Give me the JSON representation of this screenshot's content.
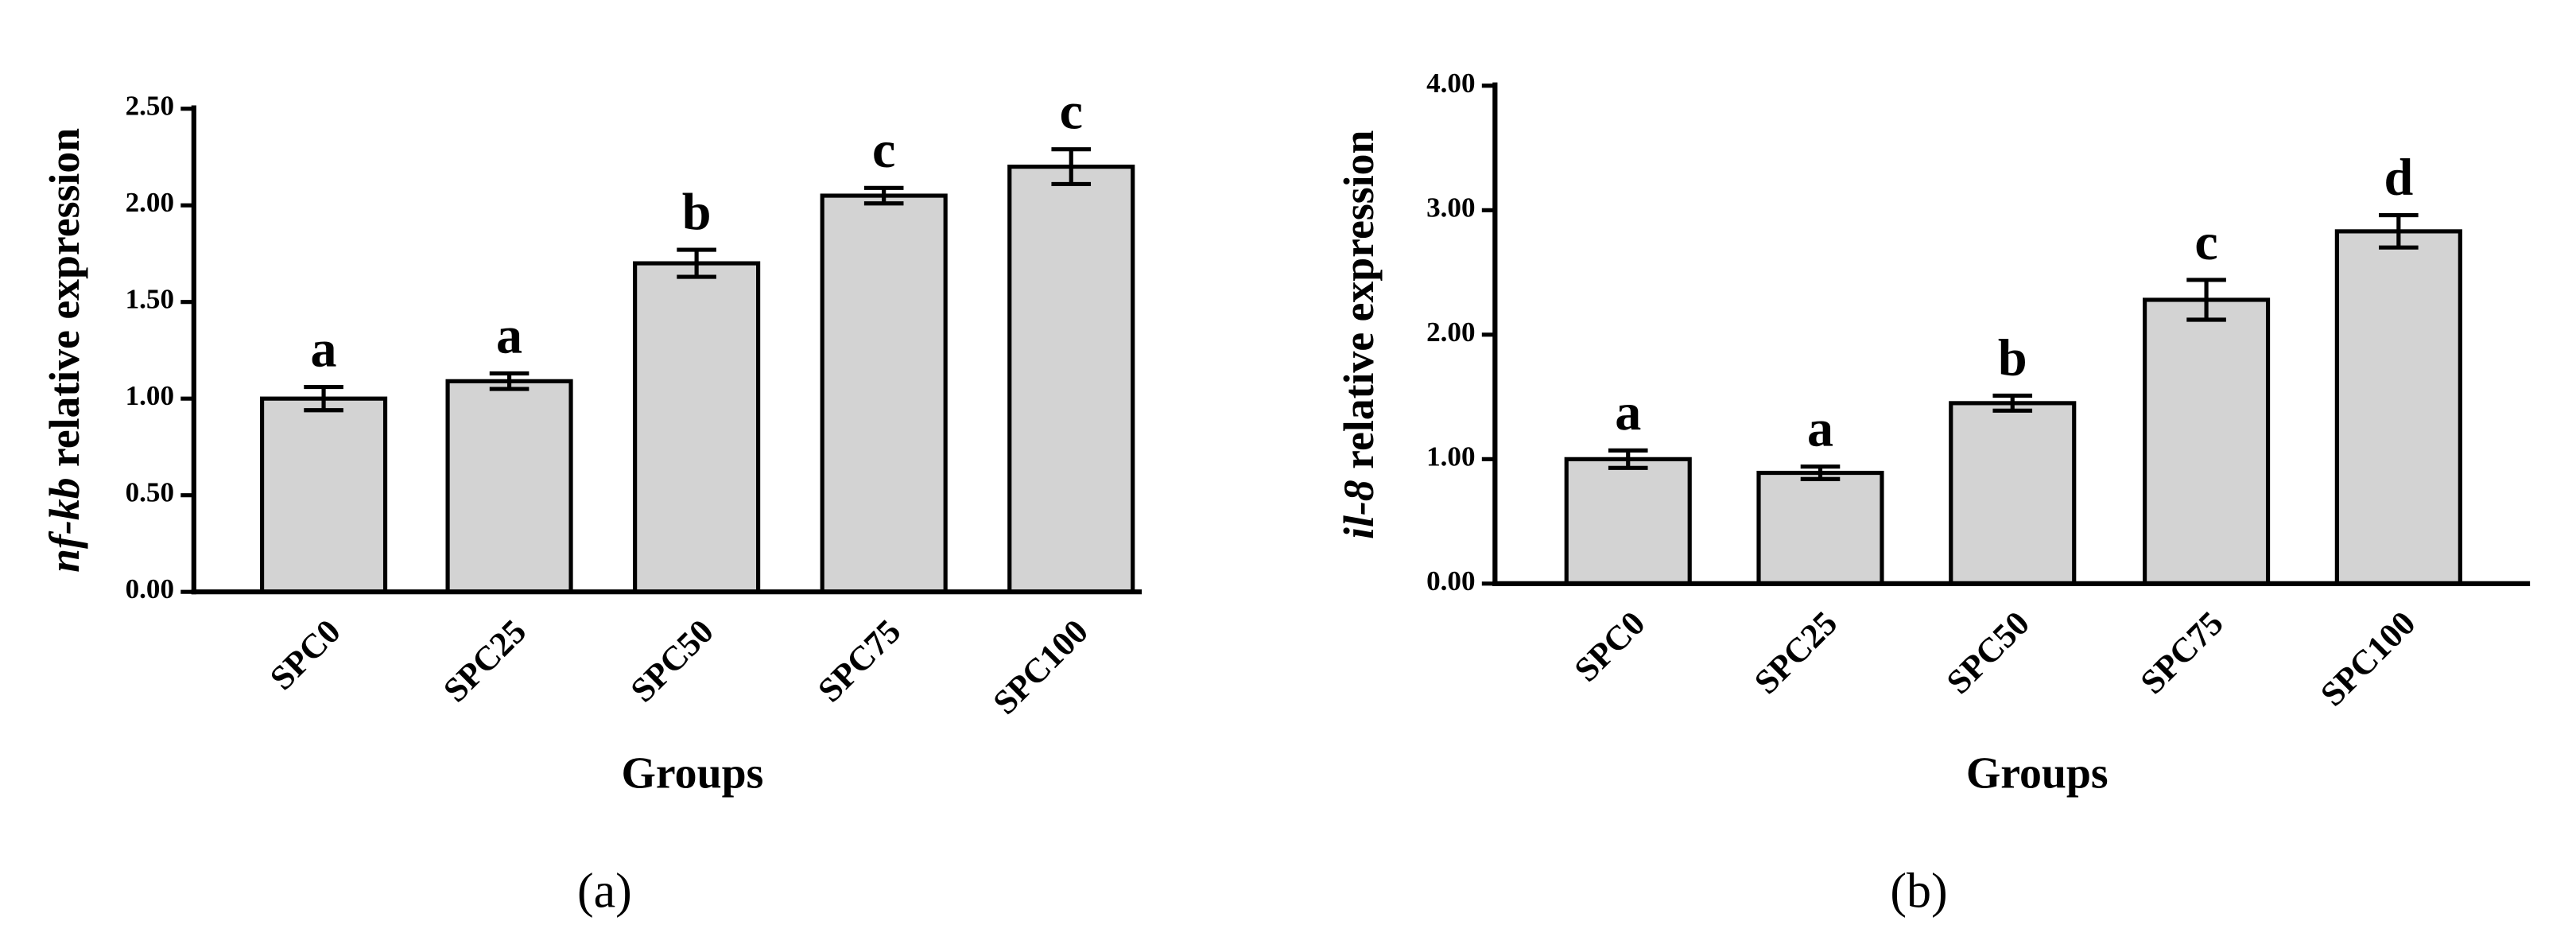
{
  "chart_data": [
    {
      "type": "bar",
      "panel_label": "(a)",
      "x_label": "Groups",
      "y_label": [
        "nf-kb",
        "relative expression"
      ],
      "categories": [
        "SPC0",
        "SPC25",
        "SPC50",
        "SPC75",
        "SPC100"
      ],
      "values": [
        1.0,
        1.09,
        1.7,
        2.05,
        2.2
      ],
      "errors": [
        0.06,
        0.04,
        0.07,
        0.04,
        0.09
      ],
      "annotations": [
        "a",
        "a",
        "b",
        "c",
        "c"
      ],
      "color": "#d3d3d3",
      "ylim": [
        0,
        2.5
      ],
      "yticks": [
        {
          "value": 0,
          "label": "0.00"
        },
        {
          "value": 0.5,
          "label": "0.50"
        },
        {
          "value": 1,
          "label": "1.00"
        },
        {
          "value": 1.5,
          "label": "1.50"
        },
        {
          "value": 2,
          "label": "2.00"
        },
        {
          "value": 2.5,
          "label": "2.50"
        }
      ],
      "grid": false
    },
    {
      "type": "bar",
      "panel_label": "(b)",
      "x_label": "Groups",
      "y_label": [
        "il-8",
        "relative expression"
      ],
      "categories": [
        "SPC0",
        "SPC25",
        "SPC50",
        "SPC75",
        "SPC100"
      ],
      "values": [
        1.0,
        0.89,
        1.45,
        2.28,
        2.83
      ],
      "errors": [
        0.07,
        0.05,
        0.06,
        0.16,
        0.13
      ],
      "annotations": [
        "a",
        "a",
        "b",
        "c",
        "d"
      ],
      "color": "#d3d3d3",
      "ylim": [
        0,
        4
      ],
      "yticks": [
        {
          "value": 0,
          "label": "0.00"
        },
        {
          "value": 1,
          "label": "1.00"
        },
        {
          "value": 2,
          "label": "2.00"
        },
        {
          "value": 3,
          "label": "3.00"
        },
        {
          "value": 4,
          "label": "4.00"
        }
      ],
      "grid": false
    }
  ]
}
